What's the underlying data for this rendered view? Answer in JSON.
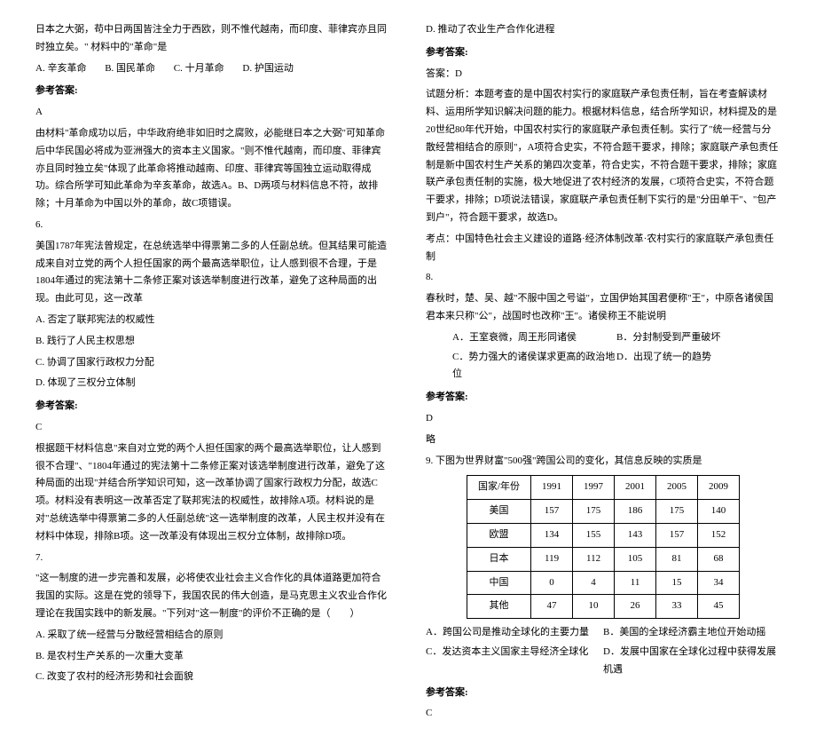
{
  "left": {
    "q5_stem": "日本之大弼，苟中日两国皆注全力于西欧，则不惟代越南，而印度、菲律宾亦且同时独立矣。\" 材料中的\"革命\"是",
    "q5_choices": [
      "A. 辛亥革命",
      "B. 国民革命",
      "C. 十月革命",
      "D. 护国运动"
    ],
    "answer_label": "参考答案:",
    "q5_answer": "A",
    "q5_expl": "由材料\"革命成功以后，中华政府绝非如旧时之腐败，必能继日本之大弼\"可知革命后中华民国必将成为亚洲强大的资本主义国家。\"则不惟代越南，而印度、菲律宾亦且同时独立矣\"体现了此革命将推动越南、印度、菲律宾等国独立运动取得成功。综合所学可知此革命为辛亥革命，故选A。B、D两项与材料信息不符，故排除；十月革命为中国以外的革命，故C项错误。",
    "q6_num": "6.",
    "q6_stem": "美国1787年宪法曾规定，在总统选举中得票第二多的人任副总统。但其结果可能造成来自对立党的两个人担任国家的两个最高选举职位，让人感到很不合理，于是1804年通过的宪法第十二条修正案对该选举制度进行改革，避免了这种局面的出现。由此可见，这一改革",
    "q6_choices": [
      "A. 否定了联邦宪法的权威性",
      "B. 践行了人民主权思想",
      "C. 协调了国家行政权力分配",
      "D. 体现了三权分立体制"
    ],
    "q6_answer": "C",
    "q6_expl": "根据题干材料信息\"来自对立党的两个人担任国家的两个最高选举职位，让人感到很不合理\"、\"1804年通过的宪法第十二条修正案对该选举制度进行改革，避免了这种局面的出现\"并结合所学知识可知，这一改革协调了国家行政权力分配，故选C项。材料没有表明这一改革否定了联邦宪法的权威性，故排除A项。材料说的是对\"总统选举中得票第二多的人任副总统\"这一选举制度的改革，人民主权并没有在材料中体现，排除B项。这一改革没有体现出三权分立体制，故排除D项。",
    "q7_num": "7.",
    "q7_stem": "\"这一制度的进一步完善和发展，必将使农业社会主义合作化的具体道路更加符合我国的实际。这是在党的领导下，我国农民的伟大创造，是马克思主义农业合作化理论在我国实践中的新发展。\"下列对\"这一制度\"的评价不正确的是（　　）",
    "q7_choices": [
      "A. 采取了统一经营与分散经营相结合的原则",
      "B. 是农村生产关系的一次重大变革",
      "C. 改变了农村的经济形势和社会面貌"
    ]
  },
  "right": {
    "q7_d": "D. 推动了农业生产合作化进程",
    "answer_label": "参考答案:",
    "q7_answer_line": "答案：D",
    "q7_expl": "试题分析：本题考查的是中国农村实行的家庭联产承包责任制，旨在考查解读材料、运用所学知识解决问题的能力。根据材料信息，结合所学知识，材料提及的是20世纪80年代开始，中国农村实行的家庭联产承包责任制。实行了\"统一经营与分散经营相结合的原则\"，A项符合史实，不符合题干要求，排除；家庭联产承包责任制是新中国农村生产关系的第四次变革，符合史实，不符合题干要求，排除；家庭联产承包责任制的实施，极大地促进了农村经济的发展，C项符合史实，不符合题干要求，排除；D项说法错误，家庭联产承包责任制下实行的是\"分田单干\"、\"包产到户\"，符合题干要求，故选D。",
    "q7_point": "考点：中国特色社会主义建设的道路·经济体制改革·农村实行的家庭联产承包责任制",
    "q8_num": "8.",
    "q8_stem": "春秋时，楚、吴、越\"不服中国之号谥\"，立国伊始其国君便称\"王\"，中原各诸侯国君本来只称\"公\"，战国时也改称\"王\"。诸侯称王不能说明",
    "q8_choices": [
      [
        "A．王室衰微，周王形同诸侯",
        "B．分封制受到严重破坏"
      ],
      [
        "C．势力强大的诸侯谋求更高的政治地位",
        "D．出现了统一的趋势"
      ]
    ],
    "q8_answer": "D",
    "q8_note": "略",
    "q9_num": "9.",
    "q9_stem": "下图为世界财富\"500强\"跨国公司的变化，其信息反映的实质是",
    "table": {
      "header": [
        "国家/年份",
        "1991",
        "1997",
        "2001",
        "2005",
        "2009"
      ],
      "rows": [
        [
          "美国",
          "157",
          "175",
          "186",
          "175",
          "140"
        ],
        [
          "欧盟",
          "134",
          "155",
          "143",
          "157",
          "152"
        ],
        [
          "日本",
          "119",
          "112",
          "105",
          "81",
          "68"
        ],
        [
          "中国",
          "0",
          "4",
          "11",
          "15",
          "34"
        ],
        [
          "其他",
          "47",
          "10",
          "26",
          "33",
          "45"
        ]
      ]
    },
    "q9_choices": [
      [
        "A．跨国公司是推动全球化的主要力量",
        "B．美国的全球经济霸主地位开始动摇"
      ],
      [
        "C．发达资本主义国家主导经济全球化",
        "D．发展中国家在全球化过程中获得发展机遇"
      ]
    ],
    "q9_answer": "C"
  }
}
